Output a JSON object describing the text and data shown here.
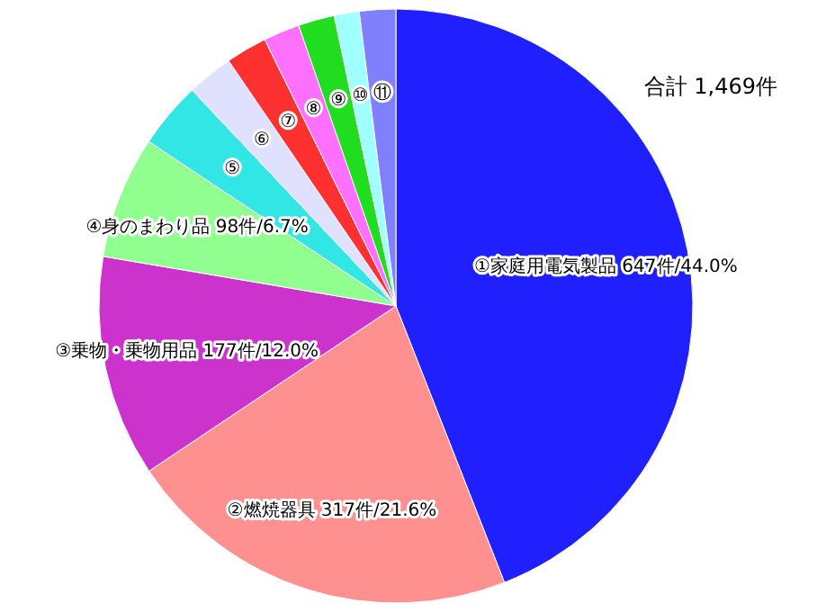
{
  "chart_data": {
    "type": "pie",
    "categories": [
      "①家庭用電気製品",
      "②燃焼器具",
      "③乗物・乗物用品",
      "④身のまわり品",
      "⑤",
      "⑥",
      "⑦",
      "⑧",
      "⑨",
      "⑩",
      "⑪"
    ],
    "values": [
      647,
      317,
      177,
      98,
      53,
      37,
      33,
      29,
      29,
      20,
      29
    ],
    "value_labels": [
      "647件/44.0%",
      "317件/21.6%",
      "177件/12.0%",
      "98件/6.7%",
      null,
      null,
      null,
      null,
      null,
      null,
      null
    ],
    "colors": [
      "#2020ff",
      "#ff9090",
      "#cc33cc",
      "#90ff90",
      "#33e6e6",
      "#e0e0ff",
      "#ff3030",
      "#ff70ff",
      "#20dd20",
      "#a0ffff",
      "#8080ff"
    ],
    "annotations": [
      "合計 1,469件"
    ]
  }
}
